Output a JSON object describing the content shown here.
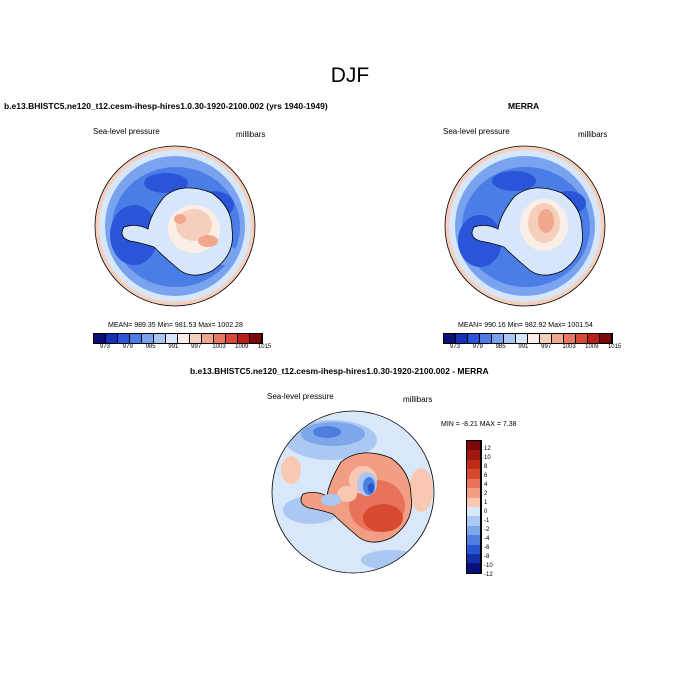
{
  "figure": {
    "title": "DJF"
  },
  "panels": [
    {
      "title": "b.e13.BHISTC5.ne120_t12.cesm-ihesp-hires1.0.30-1920-2100.002 (yrs 1940-1949)",
      "left_label": "Sea-level pressure",
      "right_label": "millibars",
      "stats_text": "MEAN= 989.35  Min= 981.53  Max= 1002.28",
      "colorbar_ticks": [
        "973",
        "979",
        "985",
        "991",
        "997",
        "1003",
        "1009",
        "1015"
      ]
    },
    {
      "title": "MERRA",
      "left_label": "Sea-level pressure",
      "right_label": "millibars",
      "stats_text": "MEAN= 990.16  Min= 982.92  Max= 1001.54",
      "colorbar_ticks": [
        "973",
        "979",
        "985",
        "991",
        "997",
        "1003",
        "1009",
        "1015"
      ]
    },
    {
      "title": "b.e13.BHISTC5.ne120_t12.cesm-ihesp-hires1.0.30-1920-2100.002 - MERRA",
      "left_label": "Sea-level pressure",
      "right_label": "millibars",
      "stats_text": "MIN =  -8.21 MAX =   7.38",
      "colorbar_ticks": [
        "12",
        "10",
        "8",
        "6",
        "4",
        "2",
        "1",
        "0",
        "-1",
        "-2",
        "-4",
        "-6",
        "-8",
        "-10",
        "-12"
      ]
    }
  ],
  "colors": {
    "abs_scale": [
      "#0a0f7a",
      "#1630b8",
      "#2a55d8",
      "#4a7ee6",
      "#7aa3ef",
      "#a9c6f5",
      "#d6e6fb",
      "#fbeee6",
      "#f6cfbc",
      "#f1a78c",
      "#e8785e",
      "#d84a35",
      "#b82018",
      "#7a0a0a"
    ],
    "diff_scale": [
      "#7a0a0a",
      "#a01810",
      "#c02a18",
      "#d84a30",
      "#e8735a",
      "#f29e84",
      "#f8c8b2",
      "#d8e8fa",
      "#aac8f2",
      "#7ea6ea",
      "#4e7ee0",
      "#2a55d0",
      "#1230a8",
      "#0a0f7a"
    ],
    "land_outline": "#000000"
  }
}
